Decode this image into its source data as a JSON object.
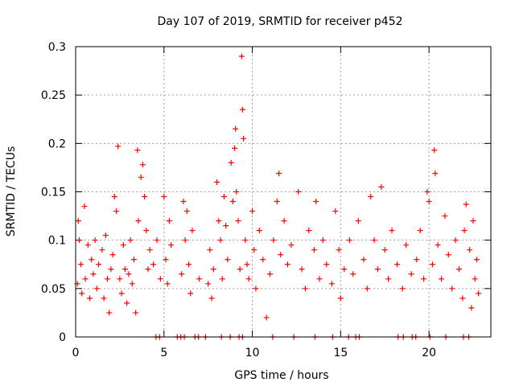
{
  "chart_data": {
    "type": "scatter",
    "title": "Day 107 of 2019, SRMTID for receiver p452",
    "xlabel": "GPS time / hours",
    "ylabel": "SRMTID / TECUs",
    "xlim": [
      0,
      23.5
    ],
    "ylim": [
      0,
      0.3
    ],
    "xticks": [
      0,
      5,
      10,
      15,
      20
    ],
    "xtick_labels": [
      "0",
      "5",
      "10",
      "15",
      "20"
    ],
    "yticks": [
      0,
      0.05,
      0.1,
      0.15,
      0.2,
      0.25,
      0.3
    ],
    "ytick_labels": [
      "0",
      "0.05",
      "0.1",
      "0.15",
      "0.2",
      "0.25",
      "0.3"
    ],
    "grid": true,
    "marker": "+",
    "color": "#ff0000",
    "series": [
      {
        "name": "SRMTID",
        "points": [
          [
            0.1,
            0.055
          ],
          [
            0.15,
            0.12
          ],
          [
            0.2,
            0.1
          ],
          [
            0.3,
            0.075
          ],
          [
            0.35,
            0.045
          ],
          [
            0.5,
            0.135
          ],
          [
            0.55,
            0.06
          ],
          [
            0.7,
            0.095
          ],
          [
            0.8,
            0.04
          ],
          [
            0.9,
            0.08
          ],
          [
            1.0,
            0.065
          ],
          [
            1.1,
            0.1
          ],
          [
            1.2,
            0.05
          ],
          [
            1.3,
            0.075
          ],
          [
            1.5,
            0.09
          ],
          [
            1.6,
            0.04
          ],
          [
            1.7,
            0.105
          ],
          [
            1.8,
            0.06
          ],
          [
            1.9,
            0.025
          ],
          [
            2.0,
            0.07
          ],
          [
            2.1,
            0.085
          ],
          [
            2.2,
            0.145
          ],
          [
            2.3,
            0.13
          ],
          [
            2.4,
            0.197
          ],
          [
            2.5,
            0.06
          ],
          [
            2.6,
            0.045
          ],
          [
            2.7,
            0.095
          ],
          [
            2.8,
            0.07
          ],
          [
            2.9,
            0.035
          ],
          [
            3.0,
            0.065
          ],
          [
            3.1,
            0.1
          ],
          [
            3.2,
            0.055
          ],
          [
            3.3,
            0.08
          ],
          [
            3.4,
            0.025
          ],
          [
            3.5,
            0.193
          ],
          [
            3.55,
            0.12
          ],
          [
            3.7,
            0.165
          ],
          [
            3.8,
            0.178
          ],
          [
            3.9,
            0.145
          ],
          [
            4.0,
            0.11
          ],
          [
            4.1,
            0.07
          ],
          [
            4.2,
            0.09
          ],
          [
            4.4,
            0.075
          ],
          [
            4.6,
            0.1
          ],
          [
            4.8,
            0.06
          ],
          [
            5.0,
            0.145
          ],
          [
            5.1,
            0.08
          ],
          [
            5.2,
            0.055
          ],
          [
            5.3,
            0.12
          ],
          [
            5.4,
            0.095
          ],
          [
            6.0,
            0.065
          ],
          [
            6.1,
            0.14
          ],
          [
            6.2,
            0.1
          ],
          [
            6.3,
            0.13
          ],
          [
            6.4,
            0.075
          ],
          [
            6.5,
            0.045
          ],
          [
            6.6,
            0.11
          ],
          [
            7.0,
            0.06
          ],
          [
            7.5,
            0.055
          ],
          [
            7.6,
            0.09
          ],
          [
            7.7,
            0.04
          ],
          [
            7.8,
            0.07
          ],
          [
            8.0,
            0.16
          ],
          [
            8.1,
            0.12
          ],
          [
            8.2,
            0.1
          ],
          [
            8.3,
            0.06
          ],
          [
            8.4,
            0.145
          ],
          [
            8.5,
            0.115
          ],
          [
            8.6,
            0.08
          ],
          [
            8.8,
            0.18
          ],
          [
            8.9,
            0.14
          ],
          [
            9.0,
            0.195
          ],
          [
            9.05,
            0.215
          ],
          [
            9.1,
            0.15
          ],
          [
            9.2,
            0.12
          ],
          [
            9.3,
            0.07
          ],
          [
            9.4,
            0.29
          ],
          [
            9.45,
            0.235
          ],
          [
            9.5,
            0.205
          ],
          [
            9.6,
            0.1
          ],
          [
            9.7,
            0.075
          ],
          [
            9.8,
            0.06
          ],
          [
            10.0,
            0.13
          ],
          [
            10.1,
            0.09
          ],
          [
            10.2,
            0.05
          ],
          [
            10.4,
            0.11
          ],
          [
            10.6,
            0.08
          ],
          [
            10.8,
            0.02
          ],
          [
            11.0,
            0.065
          ],
          [
            11.2,
            0.1
          ],
          [
            11.4,
            0.14
          ],
          [
            11.5,
            0.169
          ],
          [
            11.6,
            0.085
          ],
          [
            11.8,
            0.12
          ],
          [
            12.0,
            0.075
          ],
          [
            12.2,
            0.095
          ],
          [
            12.6,
            0.15
          ],
          [
            12.8,
            0.07
          ],
          [
            13.0,
            0.05
          ],
          [
            13.2,
            0.11
          ],
          [
            13.5,
            0.09
          ],
          [
            13.6,
            0.14
          ],
          [
            13.8,
            0.06
          ],
          [
            14.0,
            0.1
          ],
          [
            14.2,
            0.075
          ],
          [
            14.5,
            0.055
          ],
          [
            14.7,
            0.13
          ],
          [
            14.9,
            0.09
          ],
          [
            15.0,
            0.04
          ],
          [
            15.2,
            0.07
          ],
          [
            15.5,
            0.1
          ],
          [
            15.7,
            0.065
          ],
          [
            16.0,
            0.12
          ],
          [
            16.3,
            0.08
          ],
          [
            16.5,
            0.05
          ],
          [
            16.7,
            0.145
          ],
          [
            16.9,
            0.1
          ],
          [
            17.1,
            0.07
          ],
          [
            17.3,
            0.155
          ],
          [
            17.5,
            0.09
          ],
          [
            17.7,
            0.06
          ],
          [
            17.9,
            0.11
          ],
          [
            18.2,
            0.075
          ],
          [
            18.5,
            0.05
          ],
          [
            18.7,
            0.095
          ],
          [
            19.0,
            0.065
          ],
          [
            19.3,
            0.08
          ],
          [
            19.5,
            0.11
          ],
          [
            19.7,
            0.06
          ],
          [
            19.9,
            0.15
          ],
          [
            20.0,
            0.14
          ],
          [
            20.2,
            0.075
          ],
          [
            20.3,
            0.193
          ],
          [
            20.35,
            0.169
          ],
          [
            20.5,
            0.095
          ],
          [
            20.7,
            0.06
          ],
          [
            20.9,
            0.125
          ],
          [
            21.1,
            0.085
          ],
          [
            21.3,
            0.05
          ],
          [
            21.5,
            0.1
          ],
          [
            21.7,
            0.07
          ],
          [
            21.9,
            0.04
          ],
          [
            22.0,
            0.11
          ],
          [
            22.1,
            0.137
          ],
          [
            22.3,
            0.09
          ],
          [
            22.4,
            0.03
          ],
          [
            22.5,
            0.12
          ],
          [
            22.6,
            0.06
          ],
          [
            22.7,
            0.08
          ],
          [
            22.8,
            0.045
          ]
        ]
      }
    ],
    "zero_points_x": [
      4.55,
      4.75,
      5.75,
      5.95,
      6.15,
      6.75,
      6.95,
      7.35,
      8.25,
      8.75,
      9.25,
      9.45,
      11.15,
      12.35,
      13.55,
      14.55,
      15.45,
      15.85,
      16.05,
      18.25,
      18.55,
      19.05,
      19.25,
      20.05,
      20.95,
      21.95,
      22.25
    ]
  }
}
